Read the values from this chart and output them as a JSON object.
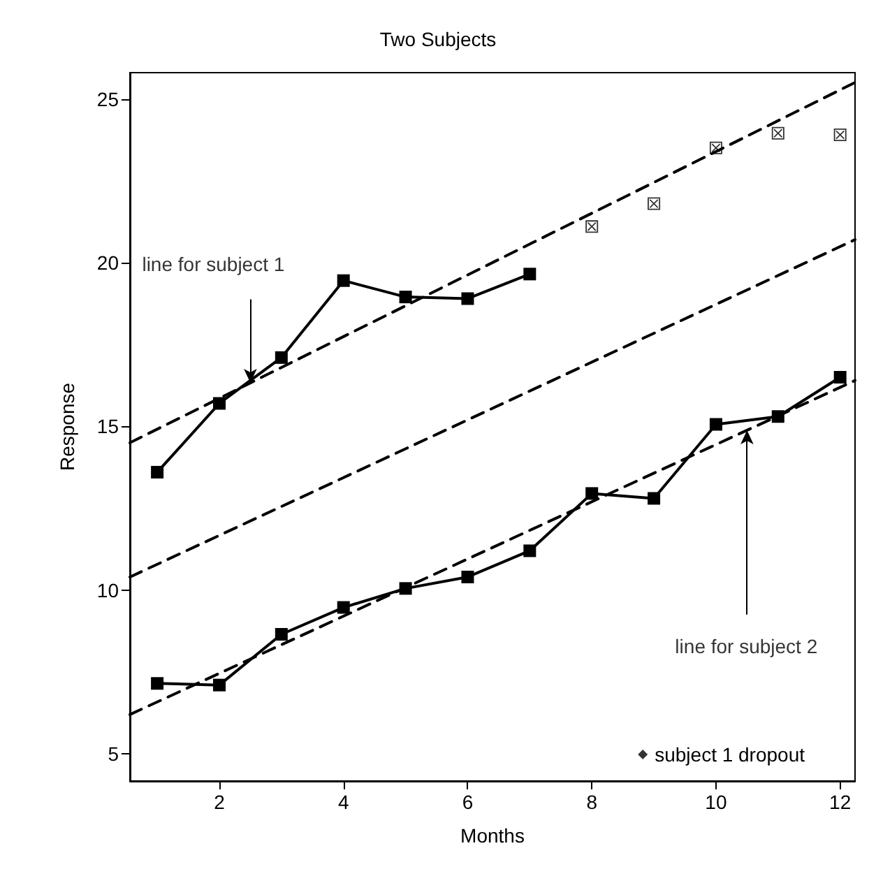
{
  "chart_data": {
    "type": "line",
    "title": "Two Subjects",
    "xlabel": "Months",
    "ylabel": "Response",
    "xlim": [
      0.56,
      12.24
    ],
    "ylim": [
      4.17,
      25.8
    ],
    "xticks": [
      2,
      4,
      6,
      8,
      10,
      12
    ],
    "yticks": [
      5,
      10,
      15,
      20,
      25
    ],
    "grid": false,
    "legend": "bottom right",
    "series": [
      {
        "color": "#000000",
        "marker": "square",
        "line_style": "solid",
        "x": [
          1,
          2,
          3,
          4,
          5,
          6,
          7
        ],
        "values": [
          13.6,
          15.7,
          17.1,
          19.45,
          18.95,
          18.9,
          19.65
        ]
      },
      {
        "type": "scatter",
        "name": "subject 1 dropout",
        "color": "#000000",
        "marker": "cross",
        "x": [
          8,
          9,
          10,
          11,
          12
        ],
        "values": [
          21.1,
          21.8,
          23.5,
          23.95,
          23.9
        ]
      },
      {
        "color": "#000000",
        "marker": "square",
        "line_style": "solid",
        "x": [
          1,
          2,
          3,
          4,
          5,
          6,
          7,
          8,
          9,
          10,
          11,
          12
        ],
        "values": [
          7.15,
          7.1,
          8.65,
          9.47,
          10.05,
          10.4,
          11.2,
          12.95,
          12.8,
          15.06,
          15.3,
          16.5
        ]
      },
      {
        "color": "#000000",
        "marker": "none",
        "line_style": "dashed",
        "x": [
          0.56,
          12.24
        ],
        "values": [
          14.5,
          25.5
        ]
      },
      {
        "color": "#000000",
        "marker": "none",
        "line_style": "dashed",
        "x": [
          0.56,
          12.24
        ],
        "values": [
          10.4,
          20.7
        ]
      },
      {
        "color": "#000000",
        "marker": "none",
        "line_style": "dashed",
        "x": [
          0.56,
          12.24
        ],
        "values": [
          6.2,
          16.4
        ]
      }
    ],
    "annotations": [
      {
        "text": "line for subject 1",
        "x": 2.5,
        "y": 16.33
      },
      {
        "text": "line for subject 2",
        "x": 10.5,
        "y": 14.88
      }
    ]
  }
}
